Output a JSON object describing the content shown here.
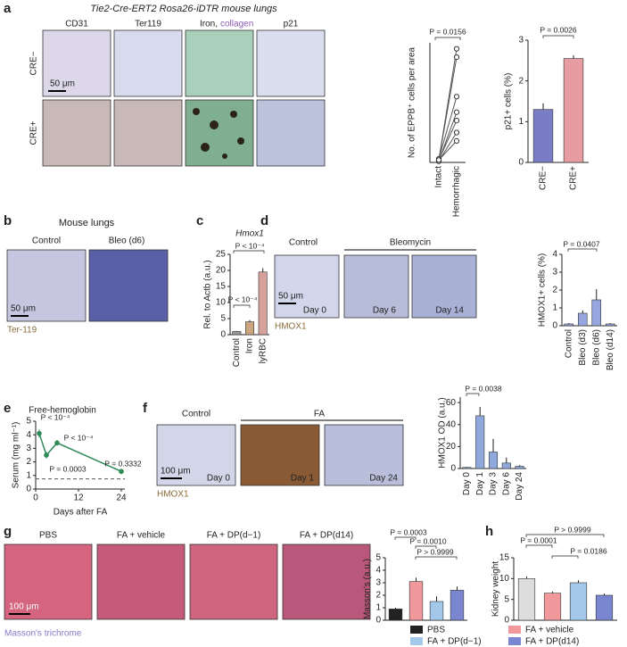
{
  "panel_letters": [
    "a",
    "b",
    "c",
    "d",
    "e",
    "f",
    "g",
    "h"
  ],
  "panel_a": {
    "title": "Tie2-Cre-ERT2 Rosa26-iDTR mouse lungs",
    "columns": [
      "CD31",
      "Ter119",
      "Iron,",
      "collagen",
      "p21"
    ],
    "rows": [
      "CRE−",
      "CRE+"
    ],
    "scale_bar": "50 μm"
  },
  "panel_b": {
    "title": "Mouse lungs",
    "columns": [
      "Control",
      "Bleo (d6)"
    ],
    "scale_bar": "50 μm",
    "stain": "Ter-119"
  },
  "panel_d": {
    "columns": [
      "Control",
      "Bleomycin"
    ],
    "days": [
      "Day 0",
      "Day 6",
      "Day 14"
    ],
    "scale_bar": "50 μm",
    "stain": "HMOX1"
  },
  "panel_f": {
    "columns": [
      "Control",
      "FA"
    ],
    "days": [
      "Day 0",
      "Day 1",
      "Day 24"
    ],
    "scale_bar": "100 μm",
    "stain": "HMOX1"
  },
  "panel_g": {
    "columns": [
      "PBS",
      "FA + vehicle",
      "FA + DP(d−1)",
      "FA + DP(d14)"
    ],
    "scale_bar": "100 μm",
    "stain": "Masson's trichrome"
  },
  "chart_data": [
    {
      "type": "paired",
      "ylabel": "No. of EPPB⁺ cells per area",
      "categories": [
        "Intact",
        "Hemorrhagic"
      ],
      "ylim": [
        0,
        10
      ],
      "series": [
        {
          "values": [
            0.2,
            9.5
          ]
        },
        {
          "values": [
            0.2,
            8.8
          ]
        },
        {
          "values": [
            0.3,
            5.5
          ]
        },
        {
          "values": [
            0.1,
            4.2
          ]
        },
        {
          "values": [
            0.2,
            3.5
          ]
        },
        {
          "values": [
            0.1,
            2.5
          ]
        },
        {
          "values": [
            0.2,
            1.8
          ]
        }
      ],
      "annotations": [
        "P = 0.0156"
      ]
    },
    {
      "type": "bar",
      "ylabel": "p21+ cells (%)",
      "categories": [
        "CRE−",
        "CRE+"
      ],
      "values": [
        1.3,
        2.55
      ],
      "errors": [
        0.15,
        0.08
      ],
      "colors": [
        "#7a7cc6",
        "#e69ca1"
      ],
      "ylim": [
        0,
        3
      ],
      "yticks": [
        0,
        1,
        2,
        3
      ],
      "annotations": [
        "P = 0.0026"
      ]
    },
    {
      "type": "bar",
      "title": "Hmox1",
      "ylabel": "Rel. to Actb (a.u.)",
      "categories": [
        "Control",
        "Iron",
        "lyRBC"
      ],
      "values": [
        1,
        4,
        19.5
      ],
      "errors": [
        0.2,
        0.5,
        1.2
      ],
      "colors": [
        "#9a9a9a",
        "#caa57e",
        "#d6a19a"
      ],
      "ylim": [
        0,
        25
      ],
      "yticks": [
        0,
        5,
        10,
        15,
        20,
        25
      ],
      "annotations": [
        "P < 10⁻⁴",
        "P < 10⁻⁴"
      ]
    },
    {
      "type": "bar",
      "ylabel": "HMOX1+ cells (%)",
      "categories": [
        "Control",
        "Bleo (d3)",
        "Bleo (d6)",
        "Bleo (d14)"
      ],
      "values": [
        0.1,
        0.7,
        1.45,
        0.1
      ],
      "errors": [
        0.05,
        0.15,
        0.6,
        0.05
      ],
      "colors": [
        "#98a6e0",
        "#98a6e0",
        "#98a6e0",
        "#98a6e0"
      ],
      "ylim": [
        0,
        4
      ],
      "yticks": [
        0,
        1,
        2,
        3,
        4
      ],
      "annotations": [
        "P = 0.0407"
      ]
    },
    {
      "type": "line",
      "title": "Free-hemoglobin",
      "ylabel": "Serum (mg ml⁻¹)",
      "xlabel": "Days after FA",
      "x": [
        1,
        3,
        6,
        24
      ],
      "values": [
        4.1,
        2.5,
        3.4,
        1.3
      ],
      "errors": [
        0.3,
        0.25,
        0.2,
        0.2
      ],
      "color": "#2e8b57",
      "reference": 0.75,
      "xlim": [
        0,
        25
      ],
      "xticks": [
        0,
        12,
        24
      ],
      "ylim": [
        0,
        5
      ],
      "yticks": [
        0,
        1,
        2,
        3,
        4,
        5
      ],
      "annotations": [
        "P < 10⁻⁴",
        "P = 0.0003",
        "P < 10⁻⁴",
        "P = 0.3332"
      ]
    },
    {
      "type": "bar",
      "ylabel": "HMOX1 OD (a.u.)",
      "categories": [
        "Day 0",
        "Day 1",
        "Day 3",
        "Day 6",
        "Day 24"
      ],
      "values": [
        1,
        48,
        15,
        5,
        2
      ],
      "errors": [
        0.5,
        8,
        12,
        5,
        1
      ],
      "colors": [
        "#8fa9dc",
        "#8fa9dc",
        "#8fa9dc",
        "#8fa9dc",
        "#8fa9dc"
      ],
      "ylim": [
        0,
        65
      ],
      "yticks": [
        0,
        20,
        40,
        60
      ],
      "annotations": [
        "P = 0.0038"
      ]
    },
    {
      "type": "bar",
      "ylabel": "Masson's (a.u.)",
      "categories": [
        "PBS",
        "FA + vehicle",
        "FA + DP(d−1)",
        "FA + DP(d14)"
      ],
      "values": [
        0.9,
        3.1,
        1.5,
        2.4
      ],
      "errors": [
        0.1,
        0.3,
        0.4,
        0.3
      ],
      "colors": [
        "#222222",
        "#f0989c",
        "#a3c8ea",
        "#7b86d0"
      ],
      "ylim": [
        0,
        5
      ],
      "yticks": [
        0,
        1,
        2,
        3,
        4,
        5
      ],
      "legend": true,
      "annotations": [
        "P = 0.0003",
        "P = 0.0010",
        "P > 0.9999"
      ]
    },
    {
      "type": "bar",
      "ylabel": "Kidney weight",
      "values": [
        10,
        6.5,
        9,
        6
      ],
      "errors": [
        0.5,
        0.4,
        0.6,
        0.4
      ],
      "colors": [
        "#dddddd",
        "#f0989c",
        "#a3c8ea",
        "#7b86d0"
      ],
      "ylim": [
        0,
        15
      ],
      "yticks": [
        0,
        5,
        10,
        15
      ],
      "annotations": [
        "P = 0.0001",
        "P > 0.9999",
        "P = 0.0186"
      ]
    }
  ]
}
